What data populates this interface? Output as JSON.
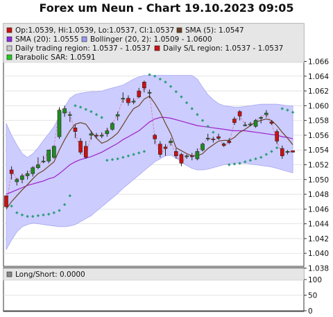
{
  "title": "Forex um Neun - Chart 19.10.2023 09:05",
  "colors": {
    "panel_bg": "#ffffff",
    "legend_bg": "#e6e6e6",
    "bollinger_fill": "#ccccff",
    "bollinger_edge": "#a8a8f2",
    "sma5": "#6b4226",
    "sma20": "#a020c8",
    "sar": "#2e9e79",
    "up_candle": "#1e8c1e",
    "down_candle": "#cc1010",
    "wick": "#222222",
    "regionline": "#d97fa6"
  },
  "legend": [
    {
      "label": "Op:1.0539, Hi:1.0539, Lo:1.0537, Cl:1.0537",
      "color": "#cc1010"
    },
    {
      "label": "SMA (5): 1.0547",
      "color": "#6b4226"
    },
    {
      "label": "SMA (20): 1.0555",
      "color": "#8a2be2"
    },
    {
      "label": "Bollinger (20, 2): 1.0509 - 1.0600",
      "color": "#9a9af0"
    },
    {
      "label": "Daily trading region: 1.0537 - 1.0537",
      "color": "#c8c8c8"
    },
    {
      "label": "Daily S/L region: 1.0537 - 1.0537",
      "color": "#cc1010"
    },
    {
      "label": "Parabolic SAR: 1.0591",
      "color": "#22cc22"
    }
  ],
  "sub_panel": {
    "legend_label": "Long/Short: 0.0000",
    "legend_color": "#888888",
    "y_ticks": [
      "100",
      "50",
      "0"
    ]
  },
  "chart_data": [
    {
      "type": "candlestick",
      "title": "Forex um Neun - Chart 19.10.2023 09:05",
      "ylim": [
        1.038,
        1.066
      ],
      "y_ticks": [
        "1.066",
        "1.064",
        "1.062",
        "1.060",
        "1.058",
        "1.056",
        "1.054",
        "1.052",
        "1.050",
        "1.048",
        "1.046",
        "1.044",
        "1.042",
        "1.040",
        "1.038"
      ],
      "grid": true,
      "legend_position": "top",
      "series": [
        {
          "name": "candles",
          "values": [
            [
              1.0478,
              1.0478,
              1.0462,
              1.0463
            ],
            [
              1.0513,
              1.0518,
              1.05,
              1.0508
            ],
            [
              1.0497,
              1.0502,
              1.0492,
              1.05
            ],
            [
              1.05,
              1.0508,
              1.0495,
              1.0505
            ],
            [
              1.0505,
              1.0512,
              1.05,
              1.0508
            ],
            [
              1.0508,
              1.0518,
              1.0504,
              1.0516
            ],
            [
              1.0516,
              1.053,
              1.0514,
              1.052
            ],
            [
              1.0525,
              1.0532,
              1.0522,
              1.0525
            ],
            [
              1.0525,
              1.054,
              1.0522,
              1.054
            ],
            [
              1.053,
              1.0546,
              1.0528,
              1.0545
            ],
            [
              1.0558,
              1.0598,
              1.0555,
              1.0594
            ],
            [
              1.059,
              1.06,
              1.0585,
              1.0596
            ],
            [
              1.0588,
              1.0592,
              1.0578,
              1.0588
            ],
            [
              1.057,
              1.0574,
              1.0556,
              1.0565
            ],
            [
              1.0552,
              1.0556,
              1.0534,
              1.0537
            ],
            [
              1.0545,
              1.0552,
              1.0528,
              1.053
            ],
            [
              1.056,
              1.0566,
              1.0554,
              1.0562
            ],
            [
              1.056,
              1.0563,
              1.0556,
              1.0559
            ],
            [
              1.056,
              1.0564,
              1.0556,
              1.056
            ],
            [
              1.0562,
              1.057,
              1.0558,
              1.0566
            ],
            [
              1.0568,
              1.0578,
              1.0566,
              1.0576
            ],
            [
              1.0586,
              1.0592,
              1.058,
              1.0588
            ],
            [
              1.061,
              1.0618,
              1.0604,
              1.061
            ],
            [
              1.061,
              1.0614,
              1.06,
              1.0604
            ],
            [
              1.0605,
              1.061,
              1.0602,
              1.0606
            ],
            [
              1.062,
              1.0624,
              1.061,
              1.0612
            ],
            [
              1.0632,
              1.0634,
              1.0618,
              1.0624
            ],
            [
              1.0618,
              1.0622,
              1.061,
              1.0618
            ],
            [
              1.056,
              1.0562,
              1.0548,
              1.0555
            ],
            [
              1.0548,
              1.0552,
              1.053,
              1.0534
            ],
            [
              1.0544,
              1.0548,
              1.0532,
              1.0542
            ],
            [
              1.055,
              1.0556,
              1.0546,
              1.0552
            ],
            [
              1.0538,
              1.0542,
              1.0528,
              1.0532
            ],
            [
              1.0534,
              1.0536,
              1.0518,
              1.0522
            ],
            [
              1.0532,
              1.0534,
              1.0528,
              1.0532
            ],
            [
              1.0532,
              1.0536,
              1.0526,
              1.0531
            ],
            [
              1.0528,
              1.0542,
              1.0526,
              1.0538
            ],
            [
              1.054,
              1.055,
              1.0538,
              1.0548
            ],
            [
              1.0556,
              1.0562,
              1.0552,
              1.0556
            ],
            [
              1.0555,
              1.0558,
              1.055,
              1.0554
            ],
            [
              1.0558,
              1.0562,
              1.0554,
              1.0556
            ],
            [
              1.0548,
              1.055,
              1.0544,
              1.0546
            ],
            [
              1.0552,
              1.0556,
              1.0548,
              1.055
            ],
            [
              1.0582,
              1.0585,
              1.0574,
              1.0577
            ],
            [
              1.0592,
              1.0594,
              1.058,
              1.0586
            ],
            [
              1.0574,
              1.0578,
              1.0572,
              1.0574
            ],
            [
              1.0574,
              1.0578,
              1.0572,
              1.0575
            ],
            [
              1.0572,
              1.0582,
              1.057,
              1.058
            ],
            [
              1.0584,
              1.0586,
              1.0576,
              1.0584
            ],
            [
              1.0588,
              1.0594,
              1.0584,
              1.059
            ],
            [
              1.0578,
              1.058,
              1.0574,
              1.0576
            ],
            [
              1.0565,
              1.0568,
              1.0548,
              1.0552
            ],
            [
              1.0542,
              1.0546,
              1.0528,
              1.0532
            ],
            [
              1.0538,
              1.054,
              1.0534,
              1.0538
            ],
            [
              1.0539,
              1.0539,
              1.0537,
              1.0537
            ]
          ]
        },
        {
          "name": "SMA (5)",
          "values": [
            1.046,
            1.047,
            1.0478,
            1.0486,
            1.0493,
            1.0501,
            1.0508,
            1.0512,
            1.0518,
            1.0524,
            1.054,
            1.0554,
            1.0566,
            1.0575,
            1.0577,
            1.0575,
            1.0565,
            1.0556,
            1.0549,
            1.0552,
            1.0557,
            1.0563,
            1.0574,
            1.0586,
            1.0596,
            1.06,
            1.0609,
            1.0613,
            1.0603,
            1.0591,
            1.0576,
            1.0562,
            1.0543,
            1.0539,
            1.0535,
            1.0532,
            1.0532,
            1.0535,
            1.0542,
            1.0547,
            1.0552,
            1.0553,
            1.0553,
            1.0557,
            1.0564,
            1.0568,
            1.0573,
            1.0578,
            1.058,
            1.0582,
            1.058,
            1.0573,
            1.0564,
            1.0556,
            1.0547
          ]
        },
        {
          "name": "SMA (20)",
          "values": [
            1.048,
            1.0483,
            1.0486,
            1.0489,
            1.0492,
            1.0494,
            1.0496,
            1.0498,
            1.0501,
            1.0503,
            1.0508,
            1.0514,
            1.052,
            1.0524,
            1.0527,
            1.0529,
            1.0531,
            1.0534,
            1.0537,
            1.0541,
            1.0545,
            1.0549,
            1.0554,
            1.0558,
            1.0562,
            1.0566,
            1.0572,
            1.0578,
            1.0582,
            1.0584,
            1.0584,
            1.0583,
            1.0581,
            1.0579,
            1.0577,
            1.0575,
            1.0573,
            1.0572,
            1.0571,
            1.057,
            1.0569,
            1.0568,
            1.0567,
            1.0566,
            1.0566,
            1.0566,
            1.0565,
            1.0564,
            1.0563,
            1.0562,
            1.0561,
            1.056,
            1.0558,
            1.0557,
            1.0555
          ]
        },
        {
          "name": "Bollinger (20, 2) upper",
          "values": [
            1.0576,
            1.056,
            1.0547,
            1.0535,
            1.053,
            1.0535,
            1.0543,
            1.0553,
            1.0562,
            1.0572,
            1.0585,
            1.0598,
            1.061,
            1.0615,
            1.0617,
            1.0618,
            1.0619,
            1.0619,
            1.062,
            1.0622,
            1.0624,
            1.0626,
            1.0628,
            1.0632,
            1.0636,
            1.0639,
            1.0641,
            1.0641,
            1.0641,
            1.0641,
            1.0641,
            1.0641,
            1.0641,
            1.0641,
            1.0641,
            1.0641,
            1.0636,
            1.0625,
            1.0615,
            1.0608,
            1.0603,
            1.06,
            1.0599,
            1.0598,
            1.0598,
            1.0599,
            1.06,
            1.0601,
            1.0602,
            1.0602,
            1.0602,
            1.0602,
            1.0601,
            1.06,
            1.06
          ]
        },
        {
          "name": "Bollinger (20, 2) lower",
          "values": [
            1.0405,
            1.0418,
            1.0429,
            1.0436,
            1.0439,
            1.0441,
            1.044,
            1.0439,
            1.0438,
            1.0437,
            1.0436,
            1.0436,
            1.0437,
            1.0439,
            1.0443,
            1.0447,
            1.0451,
            1.0457,
            1.0463,
            1.0469,
            1.0475,
            1.0481,
            1.0488,
            1.0494,
            1.05,
            1.0506,
            1.0512,
            1.0518,
            1.0524,
            1.0528,
            1.0532,
            1.0533,
            1.0529,
            1.0524,
            1.0519,
            1.0515,
            1.0513,
            1.0513,
            1.0514,
            1.0516,
            1.0518,
            1.052,
            1.0521,
            1.0522,
            1.0522,
            1.0522,
            1.0521,
            1.052,
            1.0519,
            1.0518,
            1.0517,
            1.0515,
            1.0513,
            1.0511,
            1.0509
          ]
        },
        {
          "name": "Parabolic SAR",
          "values": [
            1.0475,
            1.0464,
            1.0455,
            1.0452,
            1.045,
            1.045,
            1.0451,
            1.0452,
            1.0453,
            1.0455,
            1.0458,
            1.0466,
            1.0478,
            1.06,
            1.0598,
            1.0595,
            1.0592,
            1.0588,
            1.0584,
            1.0526,
            1.0527,
            1.0528,
            1.053,
            1.0532,
            1.0534,
            1.0536,
            1.0538,
            1.0642,
            1.064,
            1.0636,
            1.0632,
            1.0626,
            1.0619,
            1.0612,
            1.0604,
            1.0596,
            1.0588,
            1.058,
            1.0572,
            1.0564,
            1.0556,
            1.0548,
            1.052,
            1.0521,
            1.0522,
            1.0524,
            1.0526,
            1.0528,
            1.053,
            1.0534,
            1.0538,
            1.0543,
            1.0596,
            1.0594,
            1.0591
          ]
        },
        {
          "name": "Daily S/L region",
          "values": [
            1.0463,
            1.0513,
            1.05,
            1.0505,
            1.0508,
            1.0516,
            1.052,
            1.0525,
            1.054,
            1.0545,
            1.0594,
            1.0596,
            1.0588,
            1.0565,
            1.0537,
            1.053,
            1.0562,
            1.0559,
            1.056,
            1.0566,
            1.0576,
            1.0588,
            1.061,
            1.0604,
            1.0606,
            1.0612,
            1.0624,
            1.0618,
            1.0555,
            1.0534,
            1.0542,
            1.0552,
            1.0532,
            1.0522,
            1.0532,
            1.0531,
            1.0538,
            1.0548,
            1.0556,
            1.0554,
            1.0556,
            1.0546,
            1.055,
            1.0577,
            1.0586,
            1.0574,
            1.0575,
            1.058,
            1.0584,
            1.059,
            1.0576,
            1.0552,
            1.0532,
            1.0538,
            1.0537
          ]
        }
      ]
    },
    {
      "type": "line",
      "title": "",
      "ylim": [
        0,
        100
      ],
      "y_ticks": [
        "100",
        "50",
        "0"
      ],
      "grid": true,
      "series": [
        {
          "name": "Long/Short",
          "values": [
            0
          ]
        }
      ]
    }
  ]
}
